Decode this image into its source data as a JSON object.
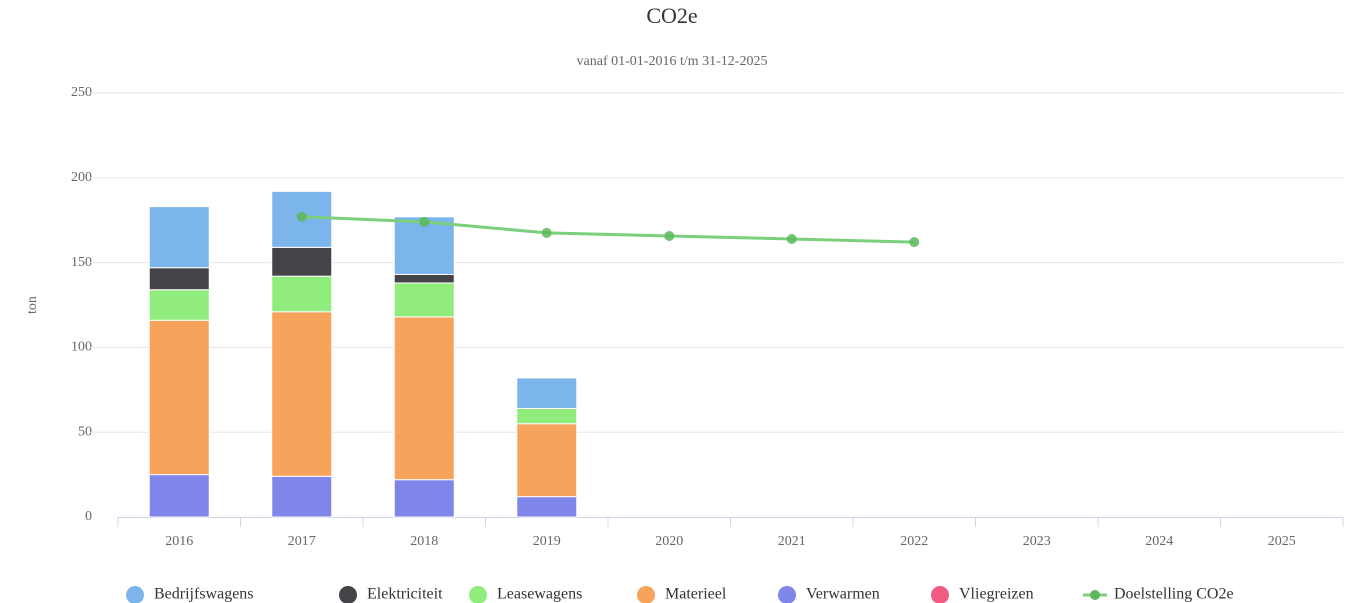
{
  "chart_data": {
    "type": "bar",
    "stacked": true,
    "title": "CO2e",
    "subtitle": "vanaf 01-01-2016 t/m 31-12-2025",
    "y_label": "ton",
    "categories": [
      "2016",
      "2017",
      "2018",
      "2019",
      "2020",
      "2021",
      "2022",
      "2023",
      "2024",
      "2025"
    ],
    "series": [
      {
        "name": "Verwarmen",
        "color": "#8085e9",
        "values": [
          25,
          24,
          22,
          12,
          null,
          null,
          null,
          null,
          null,
          null
        ]
      },
      {
        "name": "Materieel",
        "color": "#f7a35c",
        "values": [
          91,
          97,
          96,
          43,
          null,
          null,
          null,
          null,
          null,
          null
        ]
      },
      {
        "name": "Leasewagens",
        "color": "#90ed7d",
        "values": [
          18,
          21,
          20,
          9,
          null,
          null,
          null,
          null,
          null,
          null
        ]
      },
      {
        "name": "Elektriciteit",
        "color": "#434348",
        "values": [
          13,
          17,
          5,
          0,
          null,
          null,
          null,
          null,
          null,
          null
        ]
      },
      {
        "name": "Bedrijfswagens",
        "color": "#7cb5ec",
        "values": [
          36,
          33,
          34,
          18,
          null,
          null,
          null,
          null,
          null,
          null
        ]
      },
      {
        "name": "Vliegreizen",
        "color": "#f15c80",
        "values": [
          0,
          0,
          0,
          0,
          null,
          null,
          null,
          null,
          null,
          null
        ]
      },
      {
        "name": "Doelstelling CO2e",
        "color": "#7ccf7c",
        "type": "line",
        "values": [
          null,
          177,
          174,
          167.5,
          165.7,
          163.9,
          162.1,
          null,
          null,
          null
        ]
      }
    ],
    "legend_order": [
      4,
      3,
      2,
      1,
      0,
      5,
      6
    ],
    "ylim": [
      0,
      250
    ],
    "yticks": [
      0,
      50,
      100,
      150,
      200,
      250
    ],
    "grid": true,
    "legend": "bottom"
  }
}
